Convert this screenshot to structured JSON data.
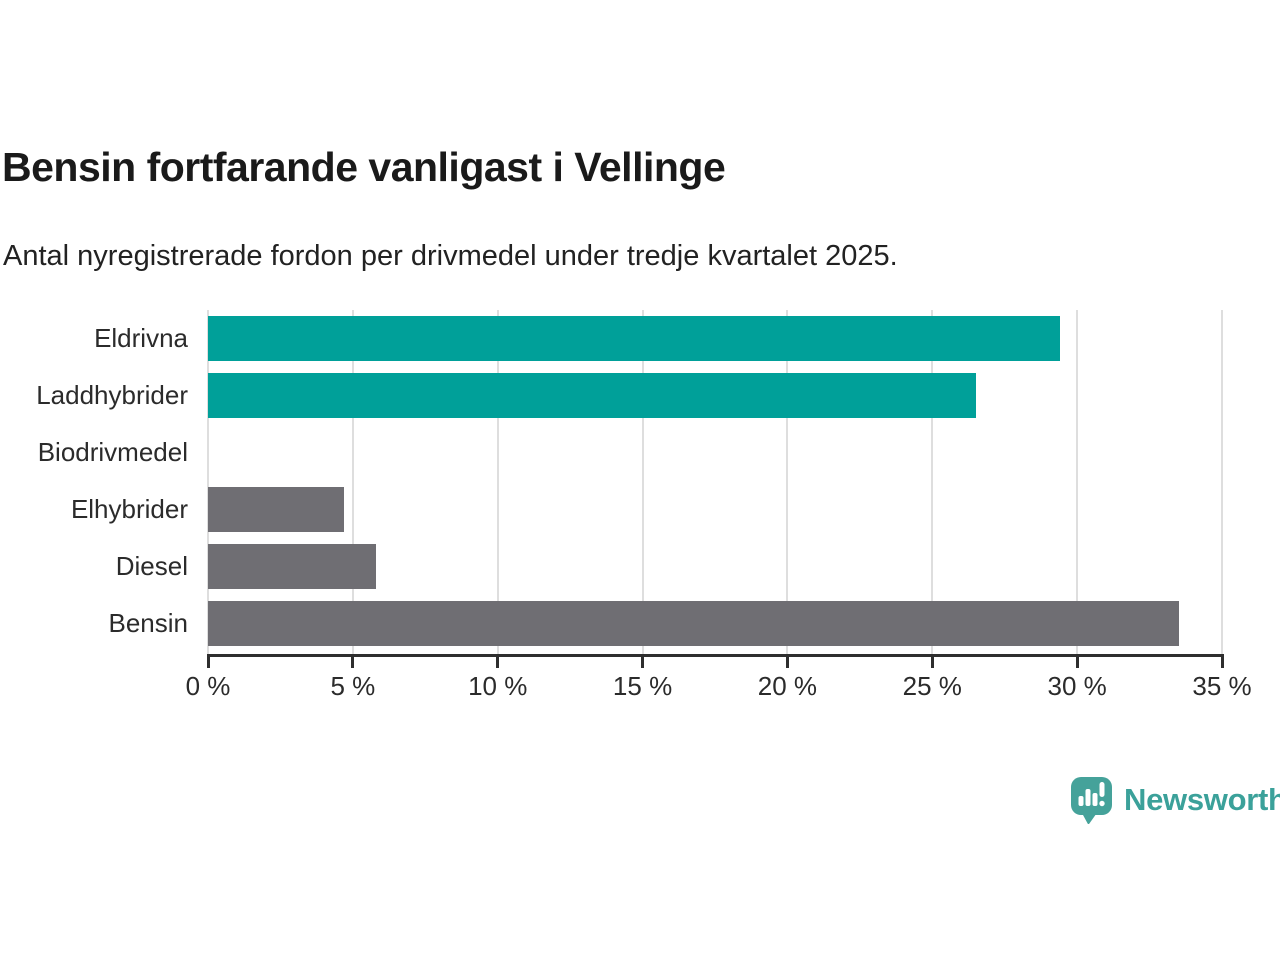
{
  "header": {
    "title": "Bensin fortfarande vanligast i Vellinge",
    "subtitle": "Antal nyregistrerade fordon per drivmedel under tredje kvartalet 2025."
  },
  "chart_data": {
    "type": "bar",
    "orientation": "horizontal",
    "title": "Bensin fortfarande vanligast i Vellinge",
    "subtitle": "Antal nyregistrerade fordon per drivmedel under tredje kvartalet 2025.",
    "categories": [
      "Eldrivna",
      "Laddhybrider",
      "Biodrivmedel",
      "Elhybrider",
      "Diesel",
      "Bensin"
    ],
    "values": [
      29.4,
      26.5,
      0,
      4.7,
      5.8,
      33.5
    ],
    "bar_colors": [
      "#00A099",
      "#00A099",
      "#00A099",
      "#6F6E73",
      "#6F6E73",
      "#6F6E73"
    ],
    "xlabel": "",
    "ylabel": "",
    "xlim": [
      0,
      35
    ],
    "x_ticks": [
      0,
      5,
      10,
      15,
      20,
      25,
      30,
      35
    ],
    "x_tick_labels": [
      "0 %",
      "5 %",
      "10 %",
      "15 %",
      "20 %",
      "25 %",
      "30 %",
      "35 %"
    ],
    "unit": "%",
    "grid": "vertical",
    "legend": "none"
  },
  "branding": {
    "logo_text": "Newsworthy",
    "logo_text_color": "#3BA19A",
    "icon_name": "bar-chart-speech-bubble-icon",
    "icon_bubble_color": "#45A29A",
    "icon_glyph_color": "#FFFFFF"
  },
  "colors": {
    "teal": "#00A099",
    "gray": "#6F6E73",
    "axis": "#2e2e2e",
    "gridline": "#dedede",
    "title_text": "#1a1a1a",
    "body_text": "#2b2b2b",
    "background": "#ffffff"
  }
}
